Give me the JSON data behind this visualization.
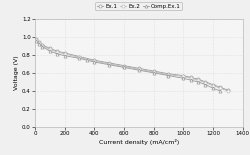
{
  "title": "",
  "xlabel": "Current density (mA/cm²)",
  "ylabel": "Voltage (V)",
  "xlim": [
    0,
    1400
  ],
  "ylim": [
    0,
    1.2
  ],
  "xticks": [
    0,
    200,
    400,
    600,
    800,
    1000,
    1200,
    1400
  ],
  "yticks": [
    0,
    0.2,
    0.4,
    0.6,
    0.8,
    1.0,
    1.2
  ],
  "legend_labels": [
    "Ex.1",
    "Ex.2",
    "Comp.Ex.1"
  ],
  "series": [
    {
      "label": "Ex.1",
      "marker": "o",
      "color": "#999999",
      "x": [
        10,
        30,
        50,
        100,
        150,
        200,
        300,
        400,
        500,
        600,
        700,
        800,
        900,
        1000,
        1050,
        1100,
        1150,
        1200,
        1250,
        1300
      ],
      "y": [
        0.97,
        0.94,
        0.91,
        0.87,
        0.84,
        0.82,
        0.78,
        0.74,
        0.71,
        0.68,
        0.65,
        0.62,
        0.59,
        0.57,
        0.55,
        0.53,
        0.5,
        0.47,
        0.44,
        0.41
      ]
    },
    {
      "label": "Ex.2",
      "marker": "o",
      "color": "#bbbbbb",
      "x": [
        10,
        30,
        50,
        100,
        150,
        200,
        300,
        400,
        500,
        600,
        700,
        800,
        900,
        1000,
        1050,
        1100,
        1150,
        1200,
        1250,
        1300
      ],
      "y": [
        0.96,
        0.93,
        0.9,
        0.86,
        0.83,
        0.81,
        0.77,
        0.73,
        0.7,
        0.67,
        0.64,
        0.61,
        0.58,
        0.56,
        0.54,
        0.52,
        0.49,
        0.46,
        0.43,
        0.4
      ]
    },
    {
      "label": "Comp.Ex.1",
      "marker": "^",
      "color": "#999999",
      "x": [
        10,
        30,
        50,
        100,
        150,
        200,
        300,
        350,
        400,
        500,
        600,
        700,
        800,
        900,
        1000,
        1050,
        1100,
        1150,
        1200,
        1250
      ],
      "y": [
        0.95,
        0.92,
        0.89,
        0.84,
        0.81,
        0.79,
        0.76,
        0.74,
        0.72,
        0.69,
        0.66,
        0.63,
        0.6,
        0.57,
        0.54,
        0.52,
        0.5,
        0.47,
        0.43,
        0.4
      ]
    }
  ],
  "background_color": "#f0f0f0",
  "plot_bg_color": "#f5f5f5",
  "grid_color": "#d0d0d0",
  "font_size": 4.5,
  "legend_fontsize": 4.0,
  "tick_fontsize": 4.0
}
